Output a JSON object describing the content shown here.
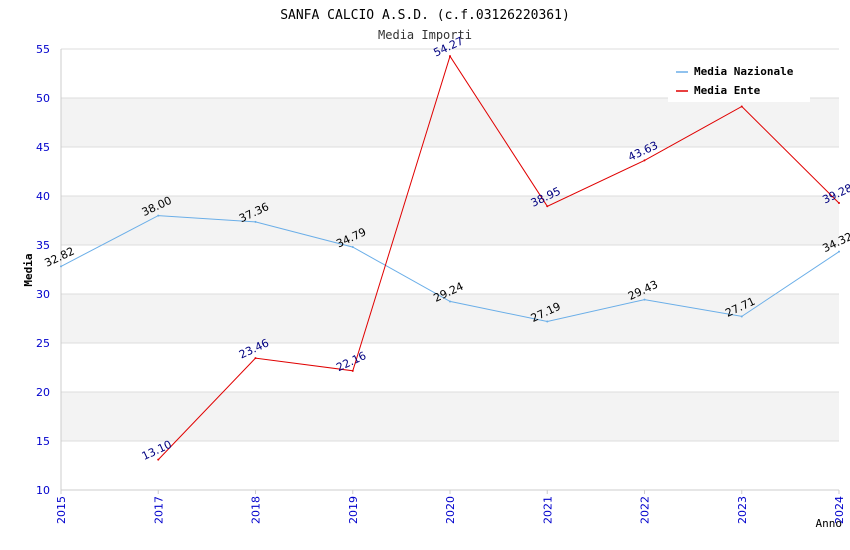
{
  "chart_data": {
    "type": "line",
    "title": "SANFA CALCIO A.S.D. (c.f.03126220361)",
    "subtitle": "Media Importi",
    "xlabel": "Anno",
    "ylabel": "Media",
    "ylim": [
      10,
      55
    ],
    "yticks": [
      "10",
      "15",
      "20",
      "25",
      "30",
      "35",
      "40",
      "45",
      "50",
      "55"
    ],
    "categories": [
      "2015",
      "2017",
      "2018",
      "2019",
      "2020",
      "2021",
      "2022",
      "2023",
      "2024"
    ],
    "legend_position": "top-right",
    "grid": true,
    "series": [
      {
        "name": "Media Nazionale",
        "color": "#6aaee8",
        "label_color": "#000000",
        "values": [
          32.82,
          38.0,
          37.36,
          34.79,
          29.24,
          27.19,
          29.43,
          27.71,
          34.32
        ],
        "labels": [
          "32.82",
          "38.00",
          "37.36",
          "34.79",
          "29.24",
          "27.19",
          "29.43",
          "27.71",
          "34.32"
        ]
      },
      {
        "name": "Media Ente",
        "color": "#e00000",
        "label_color": "#000080",
        "values": [
          null,
          13.1,
          23.46,
          22.16,
          54.27,
          38.95,
          43.63,
          49.13,
          39.28
        ],
        "labels": [
          null,
          "13.10",
          "23.46",
          "22.16",
          "54.27",
          "38.95",
          "43.63",
          null,
          "39.28"
        ]
      }
    ]
  },
  "colors": {
    "tick_label": "#0000cc",
    "band": "#f3f3f3",
    "grid": "#dddddd",
    "axis": "#cccccc"
  }
}
